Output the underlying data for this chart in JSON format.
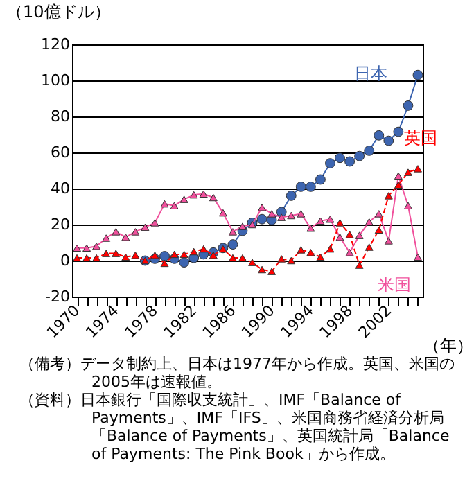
{
  "chart_data": {
    "type": "line",
    "ylabel": "（10億ドル）",
    "xlabel": "（年）",
    "x": [
      1970,
      1971,
      1972,
      1973,
      1974,
      1975,
      1976,
      1977,
      1978,
      1979,
      1980,
      1981,
      1982,
      1983,
      1984,
      1985,
      1986,
      1987,
      1988,
      1989,
      1990,
      1991,
      1992,
      1993,
      1994,
      1995,
      1996,
      1997,
      1998,
      1999,
      2000,
      2001,
      2002,
      2003,
      2004,
      2005
    ],
    "series": [
      {
        "name": "日本",
        "color": "#3d65b0",
        "marker": "circle",
        "line_style": "solid",
        "values": [
          null,
          null,
          null,
          null,
          null,
          null,
          null,
          0,
          1,
          2.5,
          1,
          -1,
          1.5,
          3.5,
          4.5,
          7,
          9,
          16.5,
          21,
          23,
          22.5,
          27,
          36,
          41,
          41,
          45,
          54,
          57,
          55,
          58,
          61,
          69.5,
          66.5,
          71.5,
          86,
          103
        ]
      },
      {
        "name": "米国",
        "color": "#f0509c",
        "marker": "triangle",
        "line_style": "solid",
        "values": [
          7,
          7,
          8,
          12.5,
          16,
          13,
          16,
          18.5,
          21,
          31.5,
          30.5,
          34,
          36.5,
          37,
          35,
          26.5,
          16,
          19,
          20,
          29.5,
          26,
          24,
          25,
          26,
          18,
          22,
          23,
          13,
          4.5,
          14,
          21.5,
          26,
          11,
          47,
          30.5,
          2
        ]
      },
      {
        "name": "英国",
        "color": "#ff0000",
        "marker": "triangle",
        "line_style": "dashed",
        "values": [
          1.5,
          1.5,
          1.5,
          4,
          4,
          2,
          3,
          0,
          3,
          -1.5,
          3.5,
          3.5,
          5,
          6.5,
          3,
          6.5,
          1.5,
          1.5,
          -1,
          -5,
          -6,
          1,
          0,
          6,
          4.5,
          2,
          6.5,
          21,
          14.5,
          -2.5,
          7.5,
          17,
          36,
          42,
          49,
          51
        ]
      }
    ],
    "xlim": [
      1969.5,
      2005.5
    ],
    "xticks": [
      1970,
      {
        "value": 1971,
        "label": null
      },
      {
        "value": 1972,
        "label": null
      },
      {
        "value": 1973,
        "label": null
      },
      1974,
      {
        "value": 1975,
        "label": null
      },
      {
        "value": 1976,
        "label": null
      },
      {
        "value": 1977,
        "label": null
      },
      1978,
      {
        "value": 1979,
        "label": null
      },
      {
        "value": 1980,
        "label": null
      },
      {
        "value": 1981,
        "label": null
      },
      1982,
      {
        "value": 1983,
        "label": null
      },
      {
        "value": 1984,
        "label": null
      },
      {
        "value": 1985,
        "label": null
      },
      1986,
      {
        "value": 1987,
        "label": null
      },
      {
        "value": 1988,
        "label": null
      },
      {
        "value": 1989,
        "label": null
      },
      1990,
      {
        "value": 1991,
        "label": null
      },
      {
        "value": 1992,
        "label": null
      },
      {
        "value": 1993,
        "label": null
      },
      1994,
      {
        "value": 1995,
        "label": null
      },
      {
        "value": 1996,
        "label": null
      },
      {
        "value": 1997,
        "label": null
      },
      1998,
      {
        "value": 1999,
        "label": null
      },
      {
        "value": 2000,
        "label": null
      },
      {
        "value": 2001,
        "label": null
      },
      2002,
      {
        "value": 2003,
        "label": null
      },
      {
        "value": 2004,
        "label": null
      },
      {
        "value": 2005,
        "label": null
      }
    ],
    "ylim": [
      -20,
      120
    ],
    "yticks": [
      -20,
      0,
      20,
      40,
      60,
      80,
      100,
      120
    ],
    "grid": "y",
    "annotations": [
      "（備考）データ制約上、日本は1977年から作成。英国、米国の2005年は速報値。",
      "（資料）日本銀行「国際収支統計」、IMF「Balance of Payments」、IMF「IFS」、米国商務省経済分析局「Balance of Payments」、英国統計局「Balance of Payments: The Pink Book」から作成。"
    ]
  }
}
